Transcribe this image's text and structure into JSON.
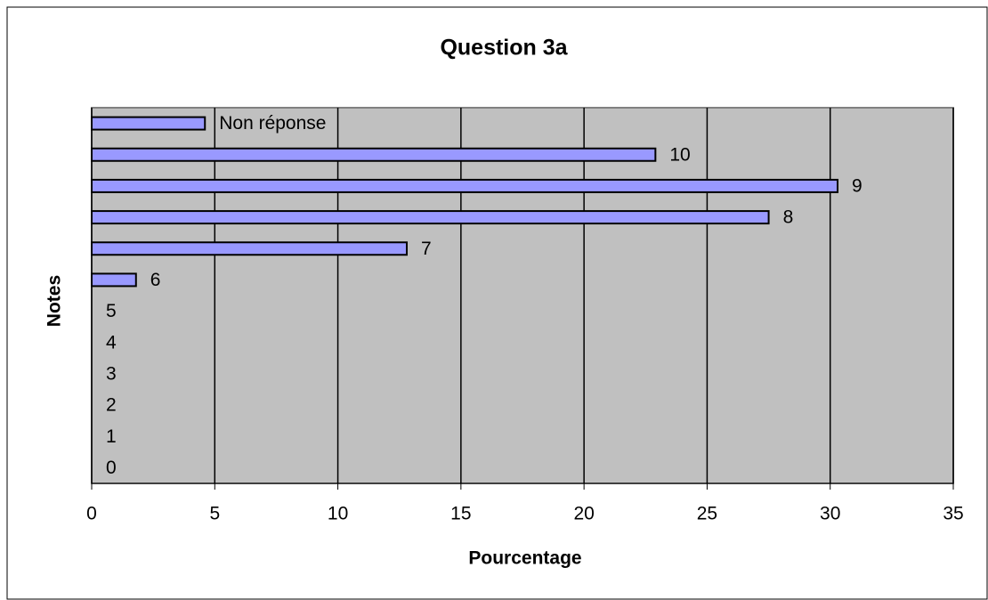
{
  "chart_data": {
    "type": "hbar",
    "title": "Question 3a",
    "x_label": "Pourcentage",
    "y_label": "Notes",
    "categories": [
      "Non réponse",
      "10",
      "9",
      "8",
      "7",
      "6",
      "5",
      "4",
      "3",
      "2",
      "1",
      "0"
    ],
    "values": [
      4.6,
      22.9,
      30.3,
      27.5,
      12.8,
      1.8,
      0,
      0,
      0,
      0,
      0,
      0
    ],
    "color": "#9999ff",
    "xlim": [
      0,
      35
    ],
    "xticks": [
      0,
      5,
      10,
      15,
      20,
      25,
      30,
      35
    ],
    "grid": true
  }
}
